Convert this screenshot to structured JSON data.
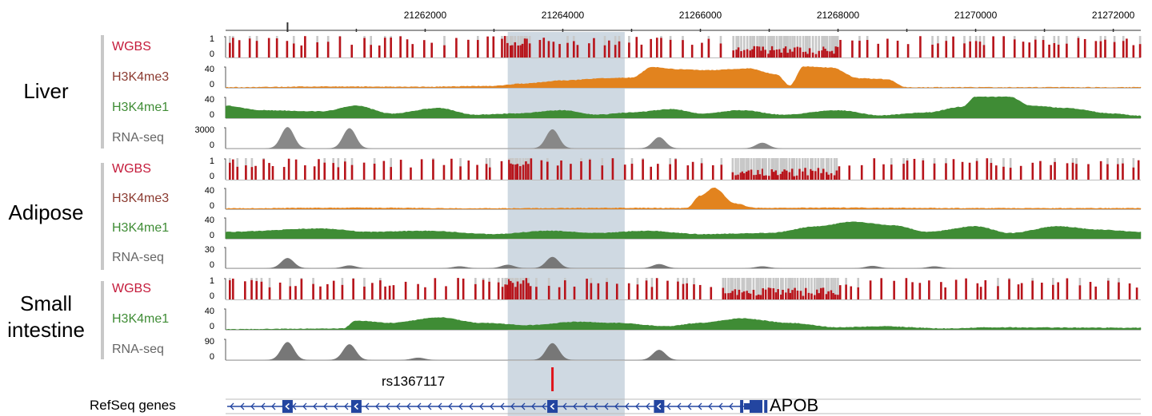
{
  "axis": {
    "coordinates": [
      "21262000",
      "21264000",
      "21266000",
      "21268000",
      "21270000",
      "21272000"
    ],
    "coordinate_values": [
      21262000,
      21264000,
      21266000,
      21268000,
      21270000,
      21272000
    ]
  },
  "highlight": {
    "start": 21263200,
    "end": 21264900,
    "color": "#cfd9e2"
  },
  "tissues": [
    {
      "name": "Liver",
      "tracks": [
        {
          "label": "WGBS",
          "kind": "WGBS",
          "max": "1",
          "min": "0",
          "color": "#b8141b",
          "bg": "#c8c8c8"
        },
        {
          "label": "H3K4me3",
          "kind": "H3K4me3",
          "max": "40",
          "min": "0",
          "color": "#e2831e"
        },
        {
          "label": "H3K4me1",
          "kind": "H3K4me1",
          "max": "40",
          "min": "0",
          "color": "#3f8c35"
        },
        {
          "label": "RNA-seq",
          "kind": "RNA-seq",
          "max": "3000",
          "min": "0",
          "color": "#888888"
        }
      ]
    },
    {
      "name": "Adipose",
      "tracks": [
        {
          "label": "WGBS",
          "kind": "WGBS",
          "max": "1",
          "min": "0",
          "color": "#b8141b",
          "bg": "#c8c8c8"
        },
        {
          "label": "H3K4me3",
          "kind": "H3K4me3",
          "max": "40",
          "min": "0",
          "color": "#e2831e"
        },
        {
          "label": "H3K4me1",
          "kind": "H3K4me1",
          "max": "40",
          "min": "0",
          "color": "#3f8c35"
        },
        {
          "label": "RNA-seq",
          "kind": "RNA-seq",
          "max": "30",
          "min": "0",
          "color": "#777777"
        }
      ]
    },
    {
      "name": "Small intestine",
      "name_lines": [
        "Small",
        "intestine"
      ],
      "tracks": [
        {
          "label": "WGBS",
          "kind": "WGBS",
          "max": "1",
          "min": "0",
          "color": "#b8141b",
          "bg": "#c8c8c8"
        },
        {
          "label": "H3K4me1",
          "kind": "H3K4me1",
          "max": "40",
          "min": "0",
          "color": "#3f8c35"
        },
        {
          "label": "RNA-seq",
          "kind": "RNA-seq",
          "max": "90",
          "min": "0",
          "color": "#777777"
        }
      ]
    }
  ],
  "label_colors": {
    "WGBS": "#c41a3a",
    "H3K4me3": "#8b3a30",
    "H3K4me1": "#3f8c35",
    "RNA-seq": "#666666"
  },
  "snp": {
    "name": "rs1367117",
    "position": 21263850,
    "color": "#e0141b"
  },
  "refseq": {
    "label": "RefSeq genes",
    "gene": "APOB",
    "strand": "minus",
    "color": "#2345a0",
    "exon_positions": [
      21260000,
      21261000,
      21263850,
      21265400,
      21266600,
      21266950
    ]
  }
}
